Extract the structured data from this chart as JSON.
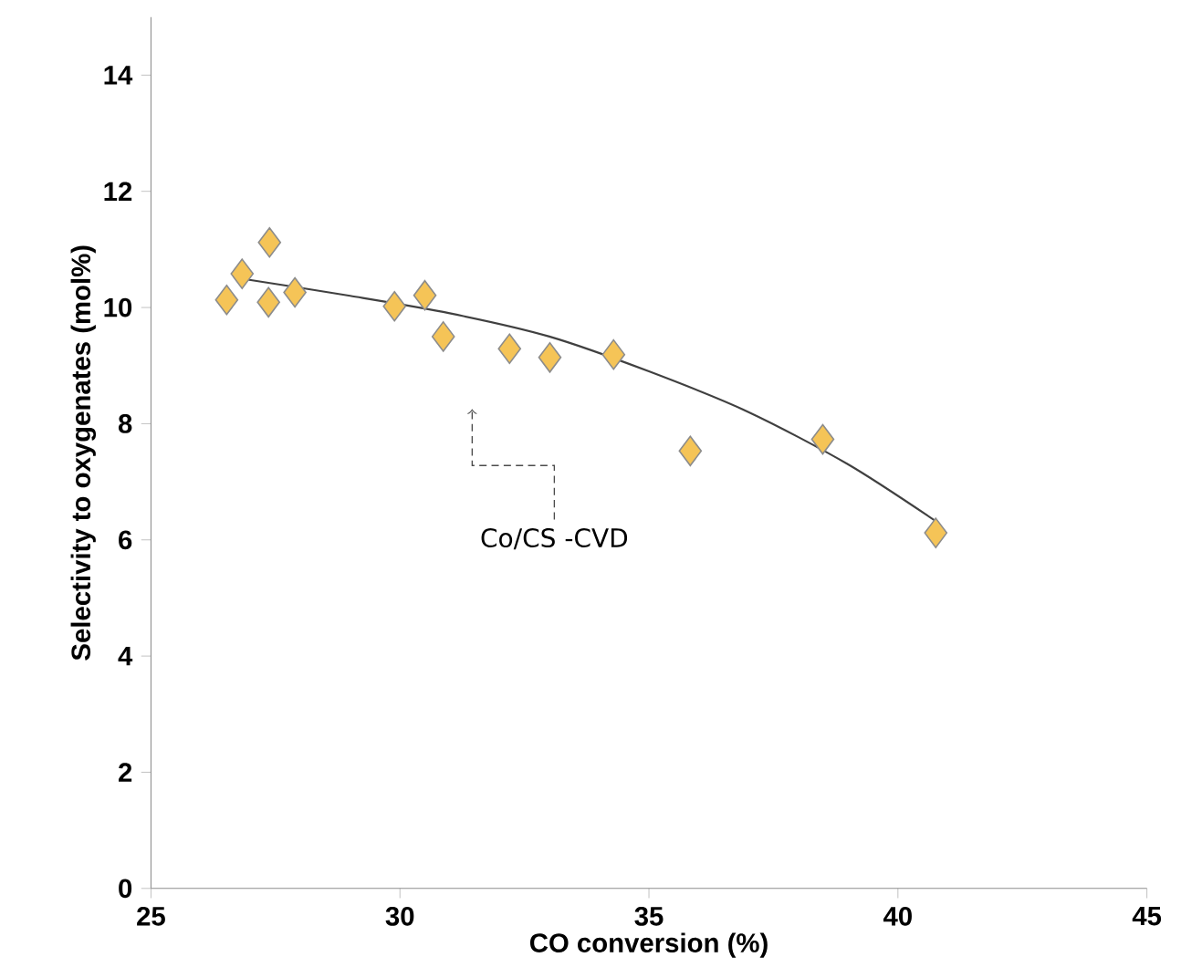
{
  "chart_data": {
    "type": "scatter",
    "xlabel": "CO conversion (%)",
    "ylabel": "Selectivity to oxygenates (mol%)",
    "xlim": [
      25,
      45
    ],
    "xticks": [
      25,
      30,
      35,
      40,
      45
    ],
    "ylim": [
      0,
      15
    ],
    "yticks": [
      0,
      2,
      4,
      6,
      8,
      10,
      12,
      14
    ],
    "grid": false,
    "annotations": [
      "Co/CS -CVD"
    ],
    "series": [
      {
        "marker": "diamond",
        "color": "#f5c457",
        "x": [
          26.52,
          26.83,
          27.38,
          27.36,
          27.89,
          29.89,
          30.5,
          30.87,
          32.2,
          33.01,
          34.29,
          35.83,
          38.49,
          40.76
        ],
        "values": [
          10.13,
          10.58,
          11.12,
          10.09,
          10.26,
          10.02,
          10.21,
          9.5,
          9.29,
          9.14,
          9.19,
          7.53,
          7.73,
          6.12
        ]
      },
      {
        "type": "line",
        "color": "#404040",
        "x": [
          26.8,
          29,
          31,
          33,
          35,
          37,
          39,
          40.8
        ],
        "values": [
          10.5,
          10.2,
          9.9,
          9.5,
          8.9,
          8.2,
          7.3,
          6.3
        ]
      }
    ]
  }
}
